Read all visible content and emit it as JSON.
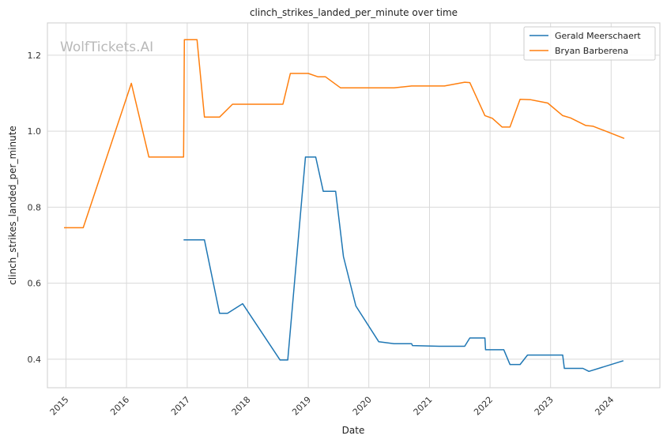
{
  "chart_data": {
    "type": "line",
    "title": "clinch_strikes_landed_per_minute over time",
    "xlabel": "Date",
    "ylabel": "clinch_strikes_landed_per_minute",
    "watermark": "WolfTickets.AI",
    "xlim": [
      "2014-09-11",
      "2024-10-21"
    ],
    "ylim": [
      0.325,
      1.285
    ],
    "x_ticks": [
      "2015",
      "2016",
      "2017",
      "2018",
      "2019",
      "2020",
      "2021",
      "2022",
      "2023",
      "2024"
    ],
    "y_ticks": [
      0.4,
      0.6,
      0.8,
      1.0,
      1.2
    ],
    "y_tick_labels": [
      "0.4",
      "0.6",
      "0.8",
      "1.0",
      "1.2"
    ],
    "grid": true,
    "legend": "top-right",
    "series": [
      {
        "name": "Gerald Meerschaert",
        "color": "#1f77b4",
        "points": [
          [
            "2016-12-10",
            0.714
          ],
          [
            "2017-04-15",
            0.714
          ],
          [
            "2017-07-15",
            0.521
          ],
          [
            "2017-09-01",
            0.521
          ],
          [
            "2017-12-01",
            0.546
          ],
          [
            "2018-07-15",
            0.398
          ],
          [
            "2018-08-30",
            0.398
          ],
          [
            "2018-12-15",
            0.932
          ],
          [
            "2019-02-15",
            0.932
          ],
          [
            "2019-04-01",
            0.842
          ],
          [
            "2019-06-15",
            0.842
          ],
          [
            "2019-08-01",
            0.67
          ],
          [
            "2019-10-15",
            0.54
          ],
          [
            "2020-03-01",
            0.446
          ],
          [
            "2020-06-01",
            0.441
          ],
          [
            "2020-09-15",
            0.441
          ],
          [
            "2020-09-20",
            0.436
          ],
          [
            "2021-03-01",
            0.434
          ],
          [
            "2021-08-01",
            0.434
          ],
          [
            "2021-09-01",
            0.456
          ],
          [
            "2021-12-01",
            0.456
          ],
          [
            "2021-12-05",
            0.425
          ],
          [
            "2022-03-25",
            0.425
          ],
          [
            "2022-05-01",
            0.386
          ],
          [
            "2022-07-01",
            0.386
          ],
          [
            "2022-08-15",
            0.411
          ],
          [
            "2023-03-15",
            0.411
          ],
          [
            "2023-03-25",
            0.376
          ],
          [
            "2023-07-15",
            0.376
          ],
          [
            "2023-08-20",
            0.368
          ],
          [
            "2024-03-15",
            0.396
          ]
        ]
      },
      {
        "name": "Bryan Barberena",
        "color": "#ff7f0e",
        "points": [
          [
            "2014-12-20",
            0.746
          ],
          [
            "2015-04-15",
            0.746
          ],
          [
            "2016-01-30",
            1.126
          ],
          [
            "2016-05-15",
            0.932
          ],
          [
            "2016-12-10",
            0.932
          ],
          [
            "2016-12-15",
            1.241
          ],
          [
            "2017-03-01",
            1.241
          ],
          [
            "2017-04-15",
            1.037
          ],
          [
            "2017-07-15",
            1.037
          ],
          [
            "2017-10-01",
            1.071
          ],
          [
            "2018-08-01",
            1.071
          ],
          [
            "2018-09-15",
            1.152
          ],
          [
            "2019-01-01",
            1.152
          ],
          [
            "2019-03-01",
            1.143
          ],
          [
            "2019-04-15",
            1.143
          ],
          [
            "2019-07-15",
            1.114
          ],
          [
            "2020-06-01",
            1.114
          ],
          [
            "2020-09-15",
            1.119
          ],
          [
            "2021-04-01",
            1.119
          ],
          [
            "2021-08-01",
            1.129
          ],
          [
            "2021-09-01",
            1.128
          ],
          [
            "2021-12-01",
            1.041
          ],
          [
            "2022-01-15",
            1.034
          ],
          [
            "2022-03-15",
            1.011
          ],
          [
            "2022-05-01",
            1.011
          ],
          [
            "2022-07-01",
            1.084
          ],
          [
            "2022-09-01",
            1.083
          ],
          [
            "2022-12-15",
            1.074
          ],
          [
            "2023-03-15",
            1.041
          ],
          [
            "2023-05-01",
            1.035
          ],
          [
            "2023-08-01",
            1.015
          ],
          [
            "2023-09-15",
            1.013
          ],
          [
            "2024-03-20",
            0.981
          ]
        ]
      }
    ]
  }
}
